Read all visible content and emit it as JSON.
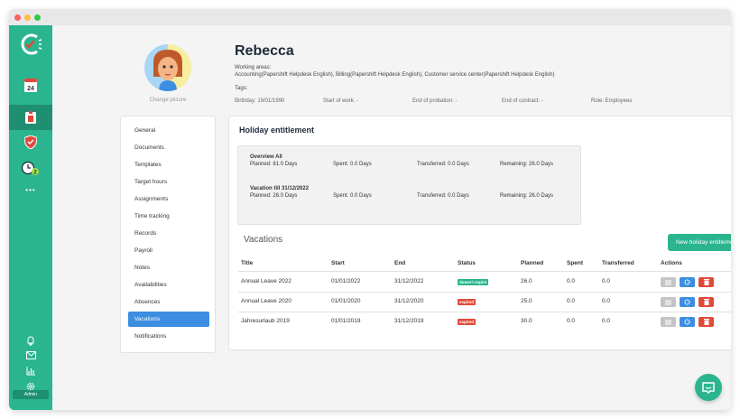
{
  "profile": {
    "name": "Rebecca",
    "change_picture": "Change picture",
    "working_areas_label": "Working areas:",
    "working_areas": "Accounting(Papershift Helpdesk English), Billing(Papershift Helpdesk English), Customer service center(Papershift Helpdesk English)",
    "tags_label": "Tags:",
    "birthday": "Birthday: 19/01/1990",
    "start_of_work": "Start of work: -",
    "end_of_probation": "End of probation: -",
    "end_of_contract": "End of contract: -",
    "role": "Role: Employees"
  },
  "sidebar": {
    "calendar_day": "24",
    "calendar_month": "",
    "clock_badge": "2",
    "more": "•••",
    "admin_label": "Admin"
  },
  "nav": {
    "items": [
      "General",
      "Documents",
      "Templates",
      "Target hours",
      "Assignments",
      "Time tracking",
      "Records",
      "Payroll",
      "Notes",
      "Availabilities",
      "Absences",
      "Vacations",
      "Notifications"
    ],
    "active": "Vacations"
  },
  "holiday": {
    "title": "Holiday entitlement",
    "overview_label": "Overview All",
    "overview_planned": "Planned: 81.0 Days",
    "overview_spent": "Spent: 0.0 Days",
    "overview_transferred": "Transferred: 0.0 Days",
    "overview_remaining": "Remaining: 26.0 Days",
    "vac_label": "Vacation till 31/12/2022",
    "vac_planned": "Planned: 26.0 Days",
    "vac_spent": "Spent: 0.0 Days",
    "vac_transferred": "Transferred: 0.0 Days",
    "vac_remaining": "Remaining: 26.0 Days"
  },
  "vacations": {
    "title": "Vacations",
    "new_button": "New holiday entitlement",
    "headers": [
      "Title",
      "Start",
      "End",
      "Status",
      "Planned",
      "Spent",
      "Transferred",
      "Actions"
    ],
    "rows": [
      {
        "title": "Annual Leave 2022",
        "start": "01/01/2022",
        "end": "31/12/2022",
        "status": "doesn't expire",
        "status_color": "#2bb58f",
        "planned": "26.0",
        "spent": "0.0",
        "transferred": "0.0"
      },
      {
        "title": "Annual Leave 2020",
        "start": "01/01/2020",
        "end": "31/12/2020",
        "status": "expired",
        "status_color": "#e04a3b",
        "planned": "25.0",
        "spent": "0.0",
        "transferred": "0.0"
      },
      {
        "title": "Jahresurlaub 2019",
        "start": "01/01/2019",
        "end": "31/12/2019",
        "status": "expired",
        "status_color": "#e04a3b",
        "planned": "30.0",
        "spent": "0.0",
        "transferred": "0.0"
      }
    ]
  },
  "colors": {
    "brand": "#2bb58f",
    "active_nav": "#3d8de0",
    "danger": "#e04a3b"
  }
}
